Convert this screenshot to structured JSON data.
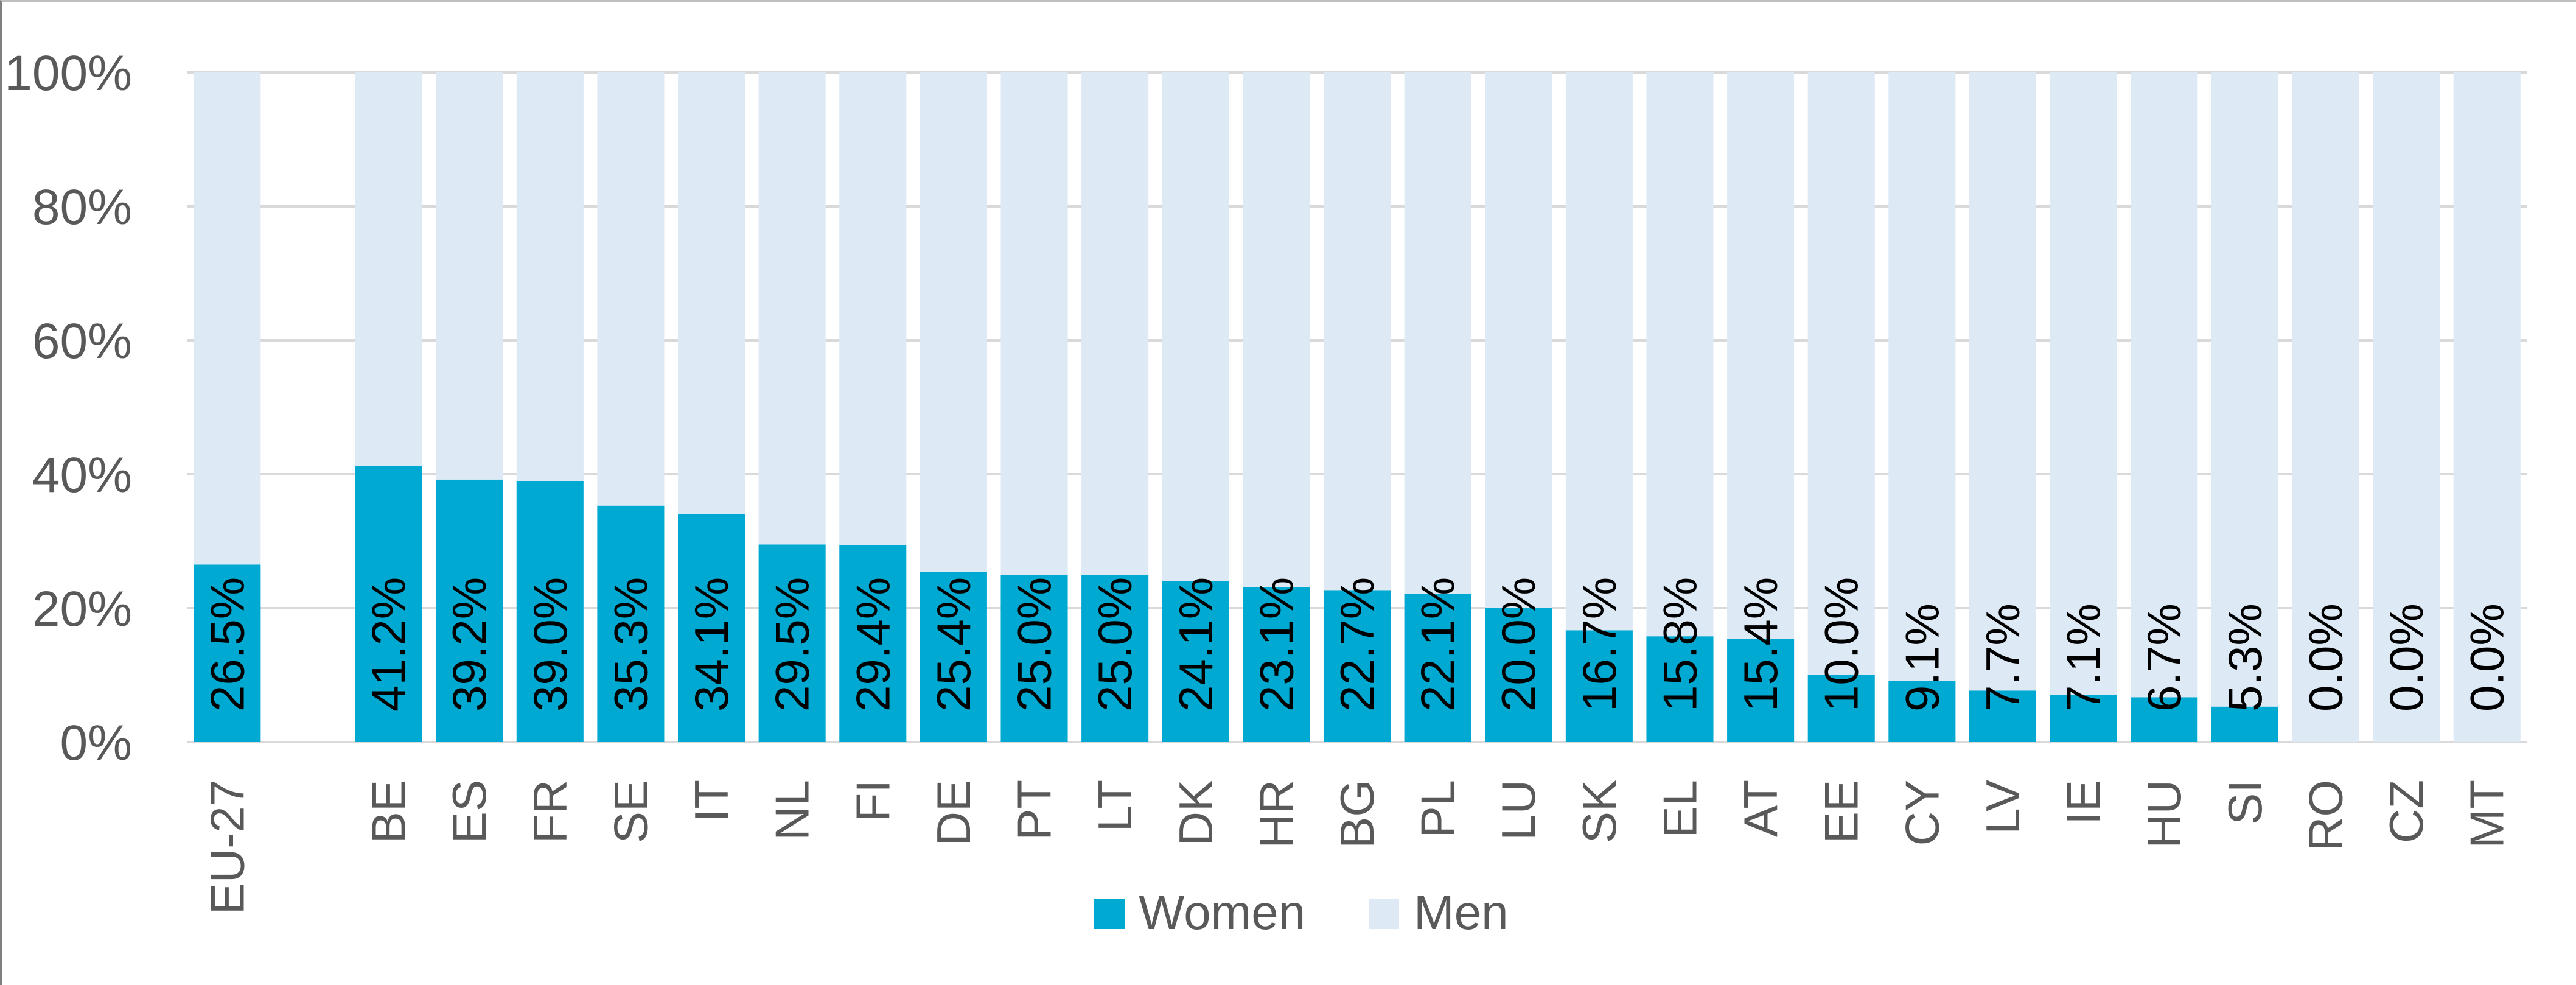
{
  "chart_data": {
    "type": "bar",
    "stacked": true,
    "percent_stacked": true,
    "categories": [
      "EU-27",
      "",
      "BE",
      "ES",
      "FR",
      "SE",
      "IT",
      "NL",
      "FI",
      "DE",
      "PT",
      "LT",
      "DK",
      "HR",
      "BG",
      "PL",
      "LU",
      "SK",
      "EL",
      "AT",
      "EE",
      "CY",
      "LV",
      "IE",
      "HU",
      "SI",
      "RO",
      "CZ",
      "MT"
    ],
    "series": [
      {
        "name": "Women",
        "color": "#00A9D1",
        "values": [
          26.5,
          null,
          41.2,
          39.2,
          39.0,
          35.3,
          34.1,
          29.5,
          29.4,
          25.4,
          25.0,
          25.0,
          24.1,
          23.1,
          22.7,
          22.1,
          20.0,
          16.7,
          15.8,
          15.4,
          10.0,
          9.1,
          7.7,
          7.1,
          6.7,
          5.3,
          0.0,
          0.0,
          0.0
        ]
      },
      {
        "name": "Men",
        "color": "#DDE9F5",
        "values": [
          73.5,
          null,
          58.8,
          60.8,
          61.0,
          64.7,
          65.9,
          70.5,
          70.6,
          74.6,
          75.0,
          75.0,
          75.9,
          76.9,
          77.3,
          77.9,
          80.0,
          83.3,
          84.2,
          84.6,
          90.0,
          90.9,
          92.3,
          92.9,
          93.3,
          94.7,
          100.0,
          100.0,
          100.0
        ]
      }
    ],
    "data_labels": [
      "26.5%",
      "",
      "41.2%",
      "39.2%",
      "39.0%",
      "35.3%",
      "34.1%",
      "29.5%",
      "29.4%",
      "25.4%",
      "25.0%",
      "25.0%",
      "24.1%",
      "23.1%",
      "22.7%",
      "22.1%",
      "20.0%",
      "16.7%",
      "15.8%",
      "15.4%",
      "10.0%",
      "9.1%",
      "7.7%",
      "7.1%",
      "6.7%",
      "5.3%",
      "0.0%",
      "0.0%",
      "0.0%"
    ],
    "yticks": [
      "0%",
      "20%",
      "40%",
      "60%",
      "80%",
      "100%"
    ],
    "ylim": [
      0,
      100
    ],
    "grid": true,
    "legend": "bottom",
    "xlabel": "",
    "ylabel": "",
    "title": ""
  }
}
